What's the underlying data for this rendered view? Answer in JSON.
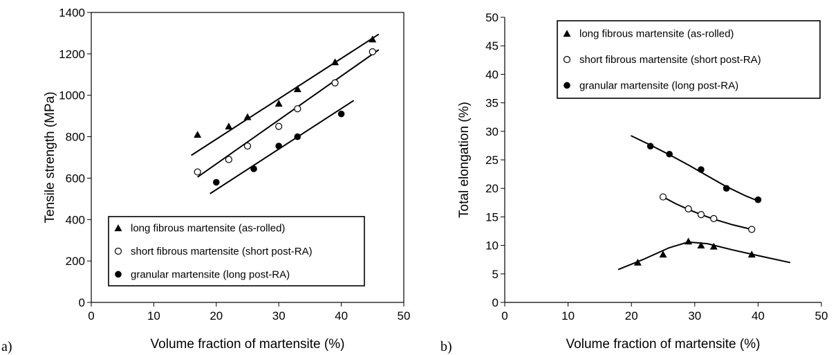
{
  "figure": {
    "panel_labels": [
      "a)",
      "b)"
    ]
  },
  "chart_data": [
    {
      "type": "scatter",
      "panel": "a)",
      "xlabel": "Volume fraction of martensite (%)",
      "ylabel": "Tensile strength (MPa)",
      "xlim": [
        0,
        50
      ],
      "ylim": [
        0,
        1400
      ],
      "xticks": [
        0,
        10,
        20,
        30,
        40,
        50
      ],
      "yticks": [
        0,
        200,
        400,
        600,
        800,
        1000,
        1200,
        1400
      ],
      "grid": false,
      "legend_position": "bottom-right",
      "series": [
        {
          "name": "long fibrous martensite (as-rolled)",
          "marker": "filled-triangle",
          "points": [
            [
              17,
              810
            ],
            [
              22,
              850
            ],
            [
              25,
              895
            ],
            [
              30,
              960
            ],
            [
              33,
              1030
            ],
            [
              39,
              1160
            ],
            [
              45,
              1270
            ]
          ],
          "fit_line": [
            [
              16,
              710
            ],
            [
              46,
              1295
            ]
          ]
        },
        {
          "name": "short fibrous martensite (short post-RA)",
          "marker": "open-circle",
          "points": [
            [
              17,
              630
            ],
            [
              22,
              690
            ],
            [
              25,
              755
            ],
            [
              30,
              850
            ],
            [
              33,
              935
            ],
            [
              39,
              1060
            ],
            [
              45,
              1210
            ]
          ],
          "fit_line": [
            [
              17,
              605
            ],
            [
              46,
              1220
            ]
          ]
        },
        {
          "name": "granular martensite (long post-RA)",
          "marker": "filled-circle",
          "points": [
            [
              20,
              580
            ],
            [
              26,
              645
            ],
            [
              30,
              755
            ],
            [
              33,
              800
            ],
            [
              40,
              910
            ]
          ],
          "fit_line": [
            [
              19,
              525
            ],
            [
              42,
              975
            ]
          ]
        }
      ]
    },
    {
      "type": "scatter",
      "panel": "b)",
      "xlabel": "Volume fraction of martensite (%)",
      "ylabel": "Total elongation (%)",
      "xlim": [
        0,
        50
      ],
      "ylim": [
        0,
        50
      ],
      "xticks": [
        0,
        10,
        20,
        30,
        40,
        50
      ],
      "yticks": [
        0,
        5,
        10,
        15,
        20,
        25,
        30,
        35,
        40,
        45,
        50
      ],
      "grid": false,
      "legend_position": "top-right",
      "series": [
        {
          "name": "long fibrous martensite (as-rolled)",
          "marker": "filled-triangle",
          "points": [
            [
              21,
              7
            ],
            [
              25,
              8.4
            ],
            [
              29,
              10.7
            ],
            [
              31,
              10
            ],
            [
              33,
              9.8
            ],
            [
              39,
              8.4
            ]
          ],
          "fit_curve": [
            [
              18,
              5.8
            ],
            [
              22,
              7.6
            ],
            [
              26,
              9.6
            ],
            [
              29,
              10.6
            ],
            [
              32,
              10.3
            ],
            [
              36,
              9.2
            ],
            [
              40,
              8.2
            ],
            [
              45,
              7.0
            ]
          ]
        },
        {
          "name": "short fibrous martensite (short post-RA)",
          "marker": "open-circle",
          "points": [
            [
              25,
              18.5
            ],
            [
              29,
              16.4
            ],
            [
              31,
              15.4
            ],
            [
              33,
              14.7
            ],
            [
              39,
              12.8
            ]
          ],
          "fit_curve": [
            [
              25,
              18.5
            ],
            [
              27,
              17.3
            ],
            [
              29,
              16.3
            ],
            [
              31,
              15.4
            ],
            [
              33,
              14.6
            ],
            [
              36,
              13.6
            ],
            [
              39,
              12.8
            ]
          ]
        },
        {
          "name": "granular martensite (long post-RA)",
          "marker": "filled-circle",
          "points": [
            [
              23,
              27.4
            ],
            [
              26,
              26
            ],
            [
              31,
              23.3
            ],
            [
              35,
              20
            ],
            [
              40,
              18
            ]
          ],
          "fit_curve": [
            [
              20,
              29.2
            ],
            [
              23,
              27.6
            ],
            [
              26,
              25.9
            ],
            [
              29,
              24.1
            ],
            [
              32,
              22.2
            ],
            [
              35,
              20.3
            ],
            [
              38,
              18.7
            ],
            [
              40,
              17.8
            ]
          ]
        }
      ]
    }
  ]
}
